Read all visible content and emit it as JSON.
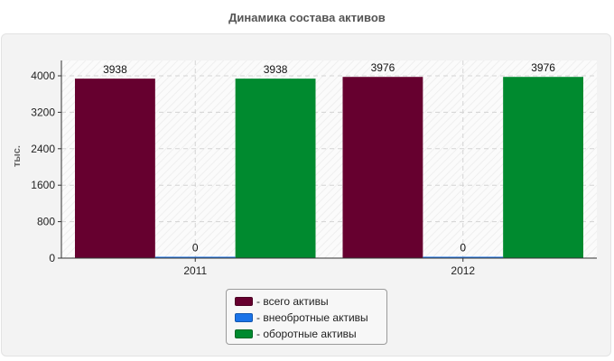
{
  "chart_data": {
    "type": "bar",
    "title": "Динамика состава активов",
    "ylabel": "тыс.",
    "xlabel": "",
    "categories": [
      "2011",
      "2012"
    ],
    "series": [
      {
        "name": "всего активы",
        "values": [
          3938,
          3976
        ],
        "color": "#66002f"
      },
      {
        "name": "внеобротные активы",
        "values": [
          0,
          0
        ],
        "color": "#1a73e8"
      },
      {
        "name": "оборотные активы",
        "values": [
          3938,
          3976
        ],
        "color": "#008a2f"
      }
    ],
    "yticks": [
      0,
      800,
      1600,
      2400,
      3200,
      4000
    ],
    "ylim": [
      0,
      4000
    ],
    "grid": true,
    "legend_position": "bottom-center",
    "legend_prefix": "- "
  }
}
